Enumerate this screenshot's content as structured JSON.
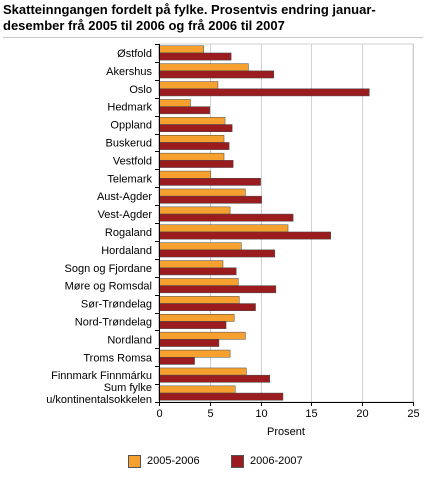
{
  "title": "Skatteinngangen fordelt på fylke. Prosentvis endring januar-desember frå 2005 til 2006 og frå 2006 til 2007",
  "colors": {
    "series_2005_2006": "#f5a02f",
    "series_2006_2007": "#9b1c1f",
    "grid": "#d0d0d0",
    "axis": "#000000"
  },
  "chart_data": {
    "type": "bar",
    "orientation": "horizontal",
    "title": "Skatteinngangen fordelt på fylke. Prosentvis endring januar-desember frå 2005 til 2006 og frå 2006 til 2007",
    "xlabel": "Prosent",
    "ylabel": "",
    "xlim": [
      0,
      25
    ],
    "xticks": [
      0,
      5,
      10,
      15,
      20,
      25
    ],
    "grid": true,
    "legend_position": "bottom",
    "categories": [
      "Østfold",
      "Akershus",
      "Oslo",
      "Hedmark",
      "Oppland",
      "Buskerud",
      "Vestfold",
      "Telemark",
      "Aust-Agder",
      "Vest-Agder",
      "Rogaland",
      "Hordaland",
      "Sogn og Fjordane",
      "Møre og Romsdal",
      "Sør-Trøndelag",
      "Nord-Trøndelag",
      "Nordland",
      "Troms Romsa",
      "Finnmark Finnmárku",
      "Sum fylke u/kontinentalsokkelen"
    ],
    "category_lines": [
      [
        "Østfold"
      ],
      [
        "Akershus"
      ],
      [
        "Oslo"
      ],
      [
        "Hedmark"
      ],
      [
        "Oppland"
      ],
      [
        "Buskerud"
      ],
      [
        "Vestfold"
      ],
      [
        "Telemark"
      ],
      [
        "Aust-Agder"
      ],
      [
        "Vest-Agder"
      ],
      [
        "Rogaland"
      ],
      [
        "Hordaland"
      ],
      [
        "Sogn og Fjordane"
      ],
      [
        "Møre og Romsdal"
      ],
      [
        "Sør-Trøndelag"
      ],
      [
        "Nord-Trøndelag"
      ],
      [
        "Nordland"
      ],
      [
        "Troms Romsa"
      ],
      [
        "Finnmark Finnmárku"
      ],
      [
        "Sum fylke",
        "u/kontinentalsokkelen"
      ]
    ],
    "series": [
      {
        "name": "2005-2006",
        "values": [
          4.4,
          8.8,
          5.8,
          3.1,
          6.5,
          6.4,
          6.4,
          5.1,
          8.5,
          7.0,
          12.7,
          8.1,
          6.3,
          7.8,
          7.9,
          7.4,
          8.5,
          7.0,
          8.6,
          7.5
        ]
      },
      {
        "name": "2006-2007",
        "values": [
          7.1,
          11.3,
          20.7,
          5.0,
          7.2,
          6.9,
          7.3,
          10.0,
          10.1,
          13.2,
          16.9,
          11.4,
          7.6,
          11.5,
          9.5,
          6.6,
          5.9,
          3.5,
          10.9,
          12.2
        ]
      }
    ]
  },
  "legend": {
    "item1": "2005-2006",
    "item2": "2006-2007"
  }
}
